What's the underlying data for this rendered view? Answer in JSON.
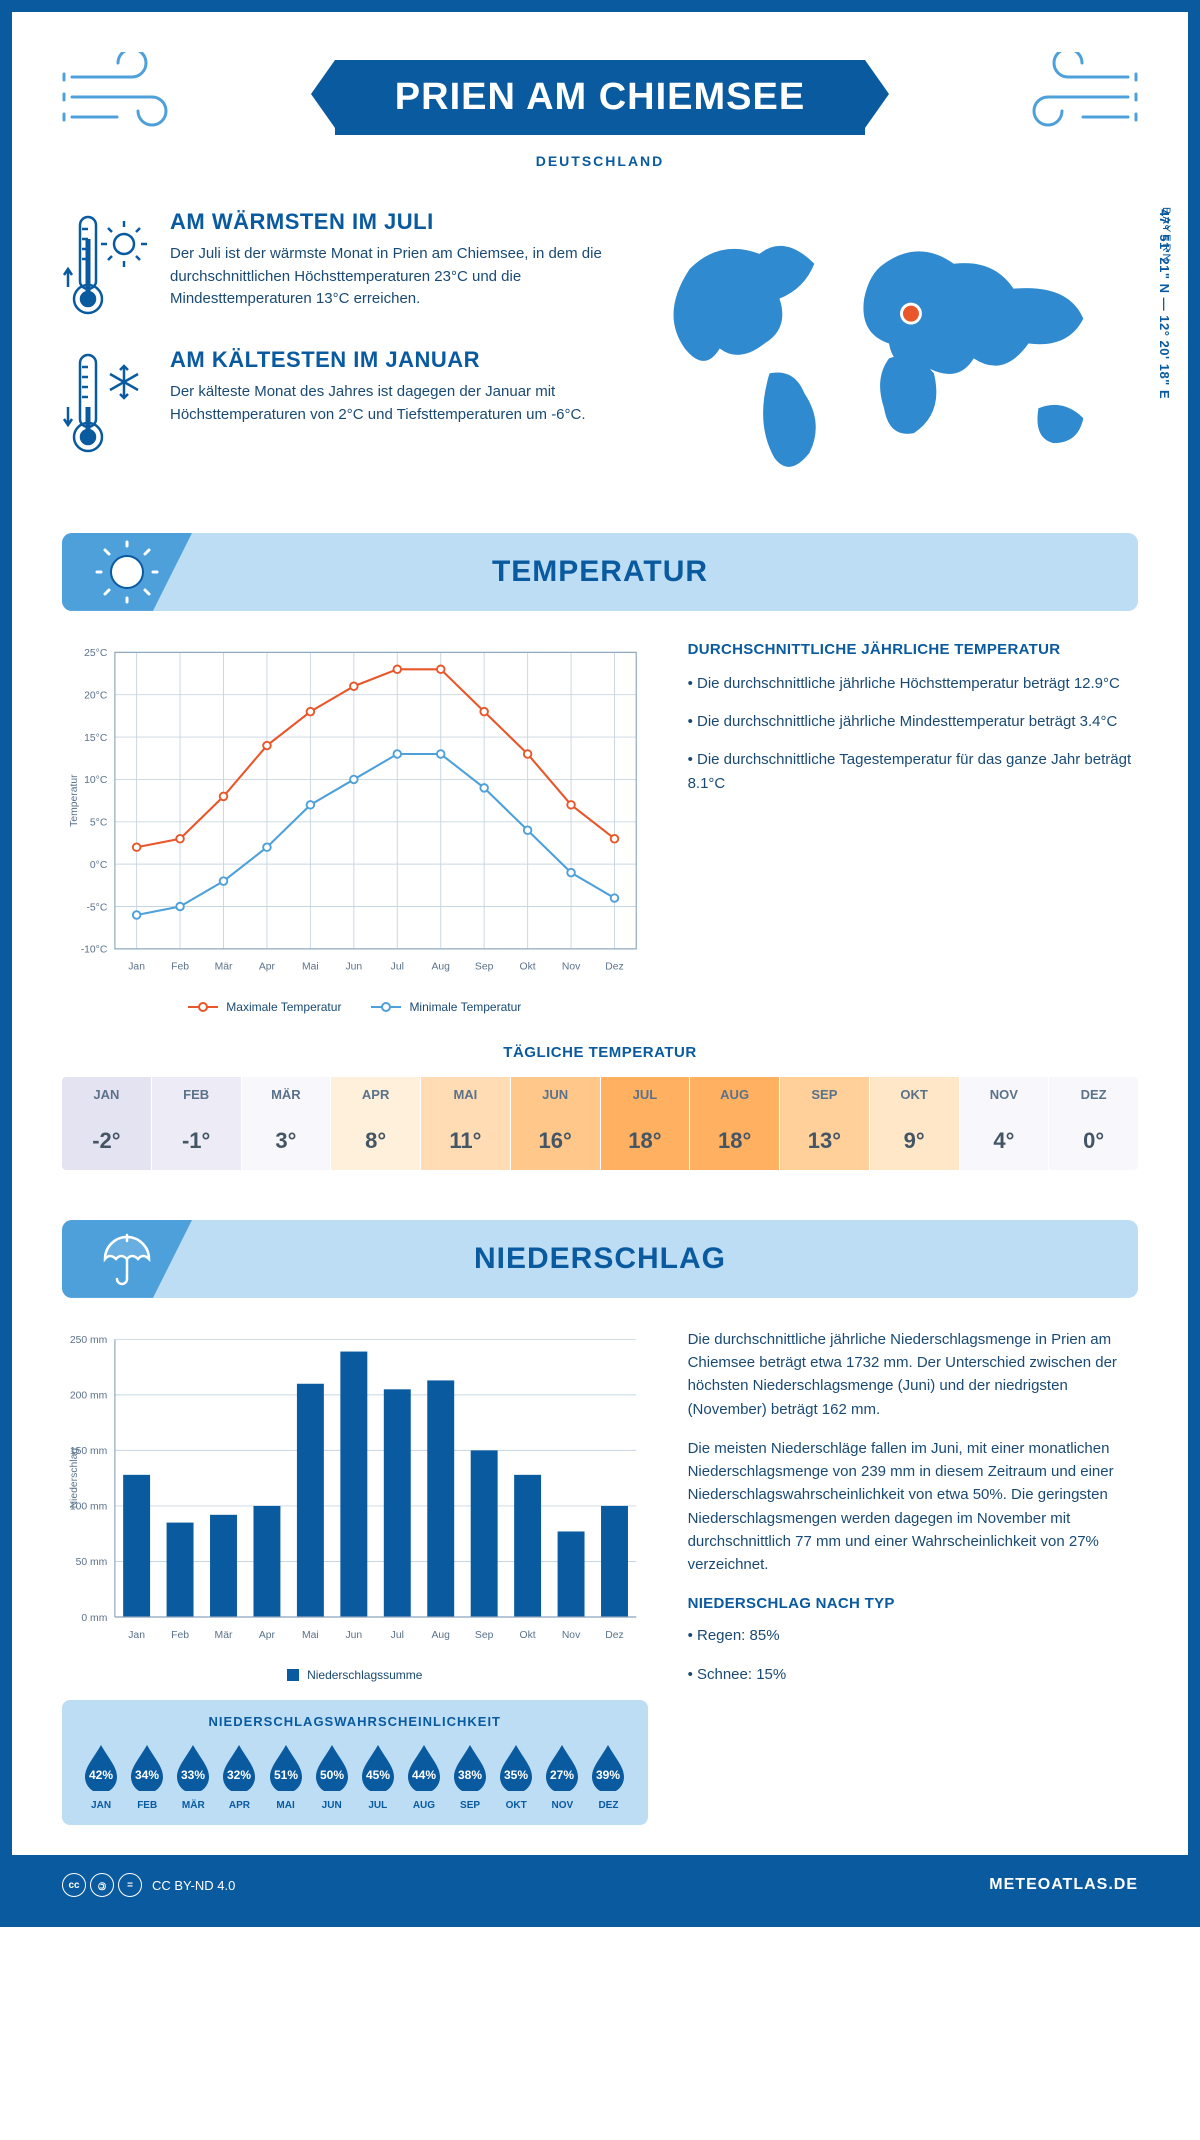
{
  "header": {
    "title": "PRIEN AM CHIEMSEE",
    "subtitle": "DEUTSCHLAND",
    "coords": "47° 51' 21\" N — 12° 20' 18\" E",
    "region": "BAYERN"
  },
  "facts": {
    "warm": {
      "title": "AM WÄRMSTEN IM JULI",
      "text": "Der Juli ist der wärmste Monat in Prien am Chiemsee, in dem die durchschnittlichen Höchsttemperaturen 23°C und die Mindesttemperaturen 13°C erreichen."
    },
    "cold": {
      "title": "AM KÄLTESTEN IM JANUAR",
      "text": "Der kälteste Monat des Jahres ist dagegen der Januar mit Höchsttemperaturen von 2°C und Tiefsttemperaturen um -6°C."
    }
  },
  "temperature_section": {
    "heading": "TEMPERATUR",
    "chart": {
      "type": "line",
      "months": [
        "Jan",
        "Feb",
        "Mär",
        "Apr",
        "Mai",
        "Jun",
        "Jul",
        "Aug",
        "Sep",
        "Okt",
        "Nov",
        "Dez"
      ],
      "y_label": "Temperatur",
      "ylim": [
        -10,
        25
      ],
      "ytick_step": 5,
      "series": {
        "max": {
          "label": "Maximale Temperatur",
          "color": "#e8562a",
          "values": [
            2,
            3,
            8,
            14,
            18,
            21,
            23,
            23,
            18,
            13,
            7,
            3
          ]
        },
        "min": {
          "label": "Minimale Temperatur",
          "color": "#4ea0db",
          "values": [
            -6,
            -5,
            -2,
            2,
            7,
            10,
            13,
            13,
            9,
            4,
            -1,
            -4
          ]
        }
      },
      "grid_color": "#c8d6e2",
      "background": "#ffffff",
      "axis_fontsize": 11
    },
    "summary": {
      "heading": "DURCHSCHNITTLICHE JÄHRLICHE TEMPERATUR",
      "bullets": [
        "• Die durchschnittliche jährliche Höchsttemperatur beträgt 12.9°C",
        "• Die durchschnittliche jährliche Mindesttemperatur beträgt 3.4°C",
        "• Die durchschnittliche Tagestemperatur für das ganze Jahr beträgt 8.1°C"
      ]
    },
    "daily": {
      "heading": "TÄGLICHE TEMPERATUR",
      "months": [
        "JAN",
        "FEB",
        "MÄR",
        "APR",
        "MAI",
        "JUN",
        "JUL",
        "AUG",
        "SEP",
        "OKT",
        "NOV",
        "DEZ"
      ],
      "values": [
        "-2°",
        "-1°",
        "3°",
        "8°",
        "11°",
        "16°",
        "18°",
        "18°",
        "13°",
        "9°",
        "4°",
        "0°"
      ],
      "colors": [
        "#e4e3f2",
        "#edecf6",
        "#f8f7fb",
        "#fff0db",
        "#ffdcb3",
        "#ffc88a",
        "#ffb060",
        "#ffb060",
        "#ffd09a",
        "#ffe7c7",
        "#f8f7fb",
        "#f8f7fb"
      ]
    }
  },
  "precip_section": {
    "heading": "NIEDERSCHLAG",
    "chart": {
      "type": "bar",
      "y_label": "Niederschlag",
      "months": [
        "Jan",
        "Feb",
        "Mär",
        "Apr",
        "Mai",
        "Jun",
        "Jul",
        "Aug",
        "Sep",
        "Okt",
        "Nov",
        "Dez"
      ],
      "values": [
        128,
        85,
        92,
        100,
        210,
        239,
        205,
        213,
        150,
        128,
        77,
        100
      ],
      "ylim": [
        0,
        250
      ],
      "ytick_step": 50,
      "bar_color": "#0a5aa0",
      "legend": "Niederschlagssumme",
      "grid_color": "#c8d6e2"
    },
    "text": {
      "p1": "Die durchschnittliche jährliche Niederschlagsmenge in Prien am Chiemsee beträgt etwa 1732 mm. Der Unterschied zwischen der höchsten Niederschlagsmenge (Juni) und der niedrigsten (November) beträgt 162 mm.",
      "p2": "Die meisten Niederschläge fallen im Juni, mit einer monatlichen Niederschlagsmenge von 239 mm in diesem Zeitraum und einer Niederschlagswahrscheinlichkeit von etwa 50%. Die geringsten Niederschlagsmengen werden dagegen im November mit durchschnittlich 77 mm und einer Wahrscheinlichkeit von 27% verzeichnet.",
      "type_heading": "NIEDERSCHLAG NACH TYP",
      "type_bullets": [
        "• Regen: 85%",
        "• Schnee: 15%"
      ]
    },
    "probability": {
      "heading": "NIEDERSCHLAGSWAHRSCHEINLICHKEIT",
      "months": [
        "JAN",
        "FEB",
        "MÄR",
        "APR",
        "MAI",
        "JUN",
        "JUL",
        "AUG",
        "SEP",
        "OKT",
        "NOV",
        "DEZ"
      ],
      "values": [
        "42%",
        "34%",
        "33%",
        "32%",
        "51%",
        "50%",
        "45%",
        "44%",
        "38%",
        "35%",
        "27%",
        "39%"
      ],
      "drop_color": "#0a5aa0"
    }
  },
  "footer": {
    "license": "CC BY-ND 4.0",
    "site": "METEOATLAS.DE"
  },
  "palette": {
    "primary": "#0a5aa0",
    "light": "#bcddf4",
    "mid": "#4ea0db",
    "orange": "#e8562a"
  }
}
